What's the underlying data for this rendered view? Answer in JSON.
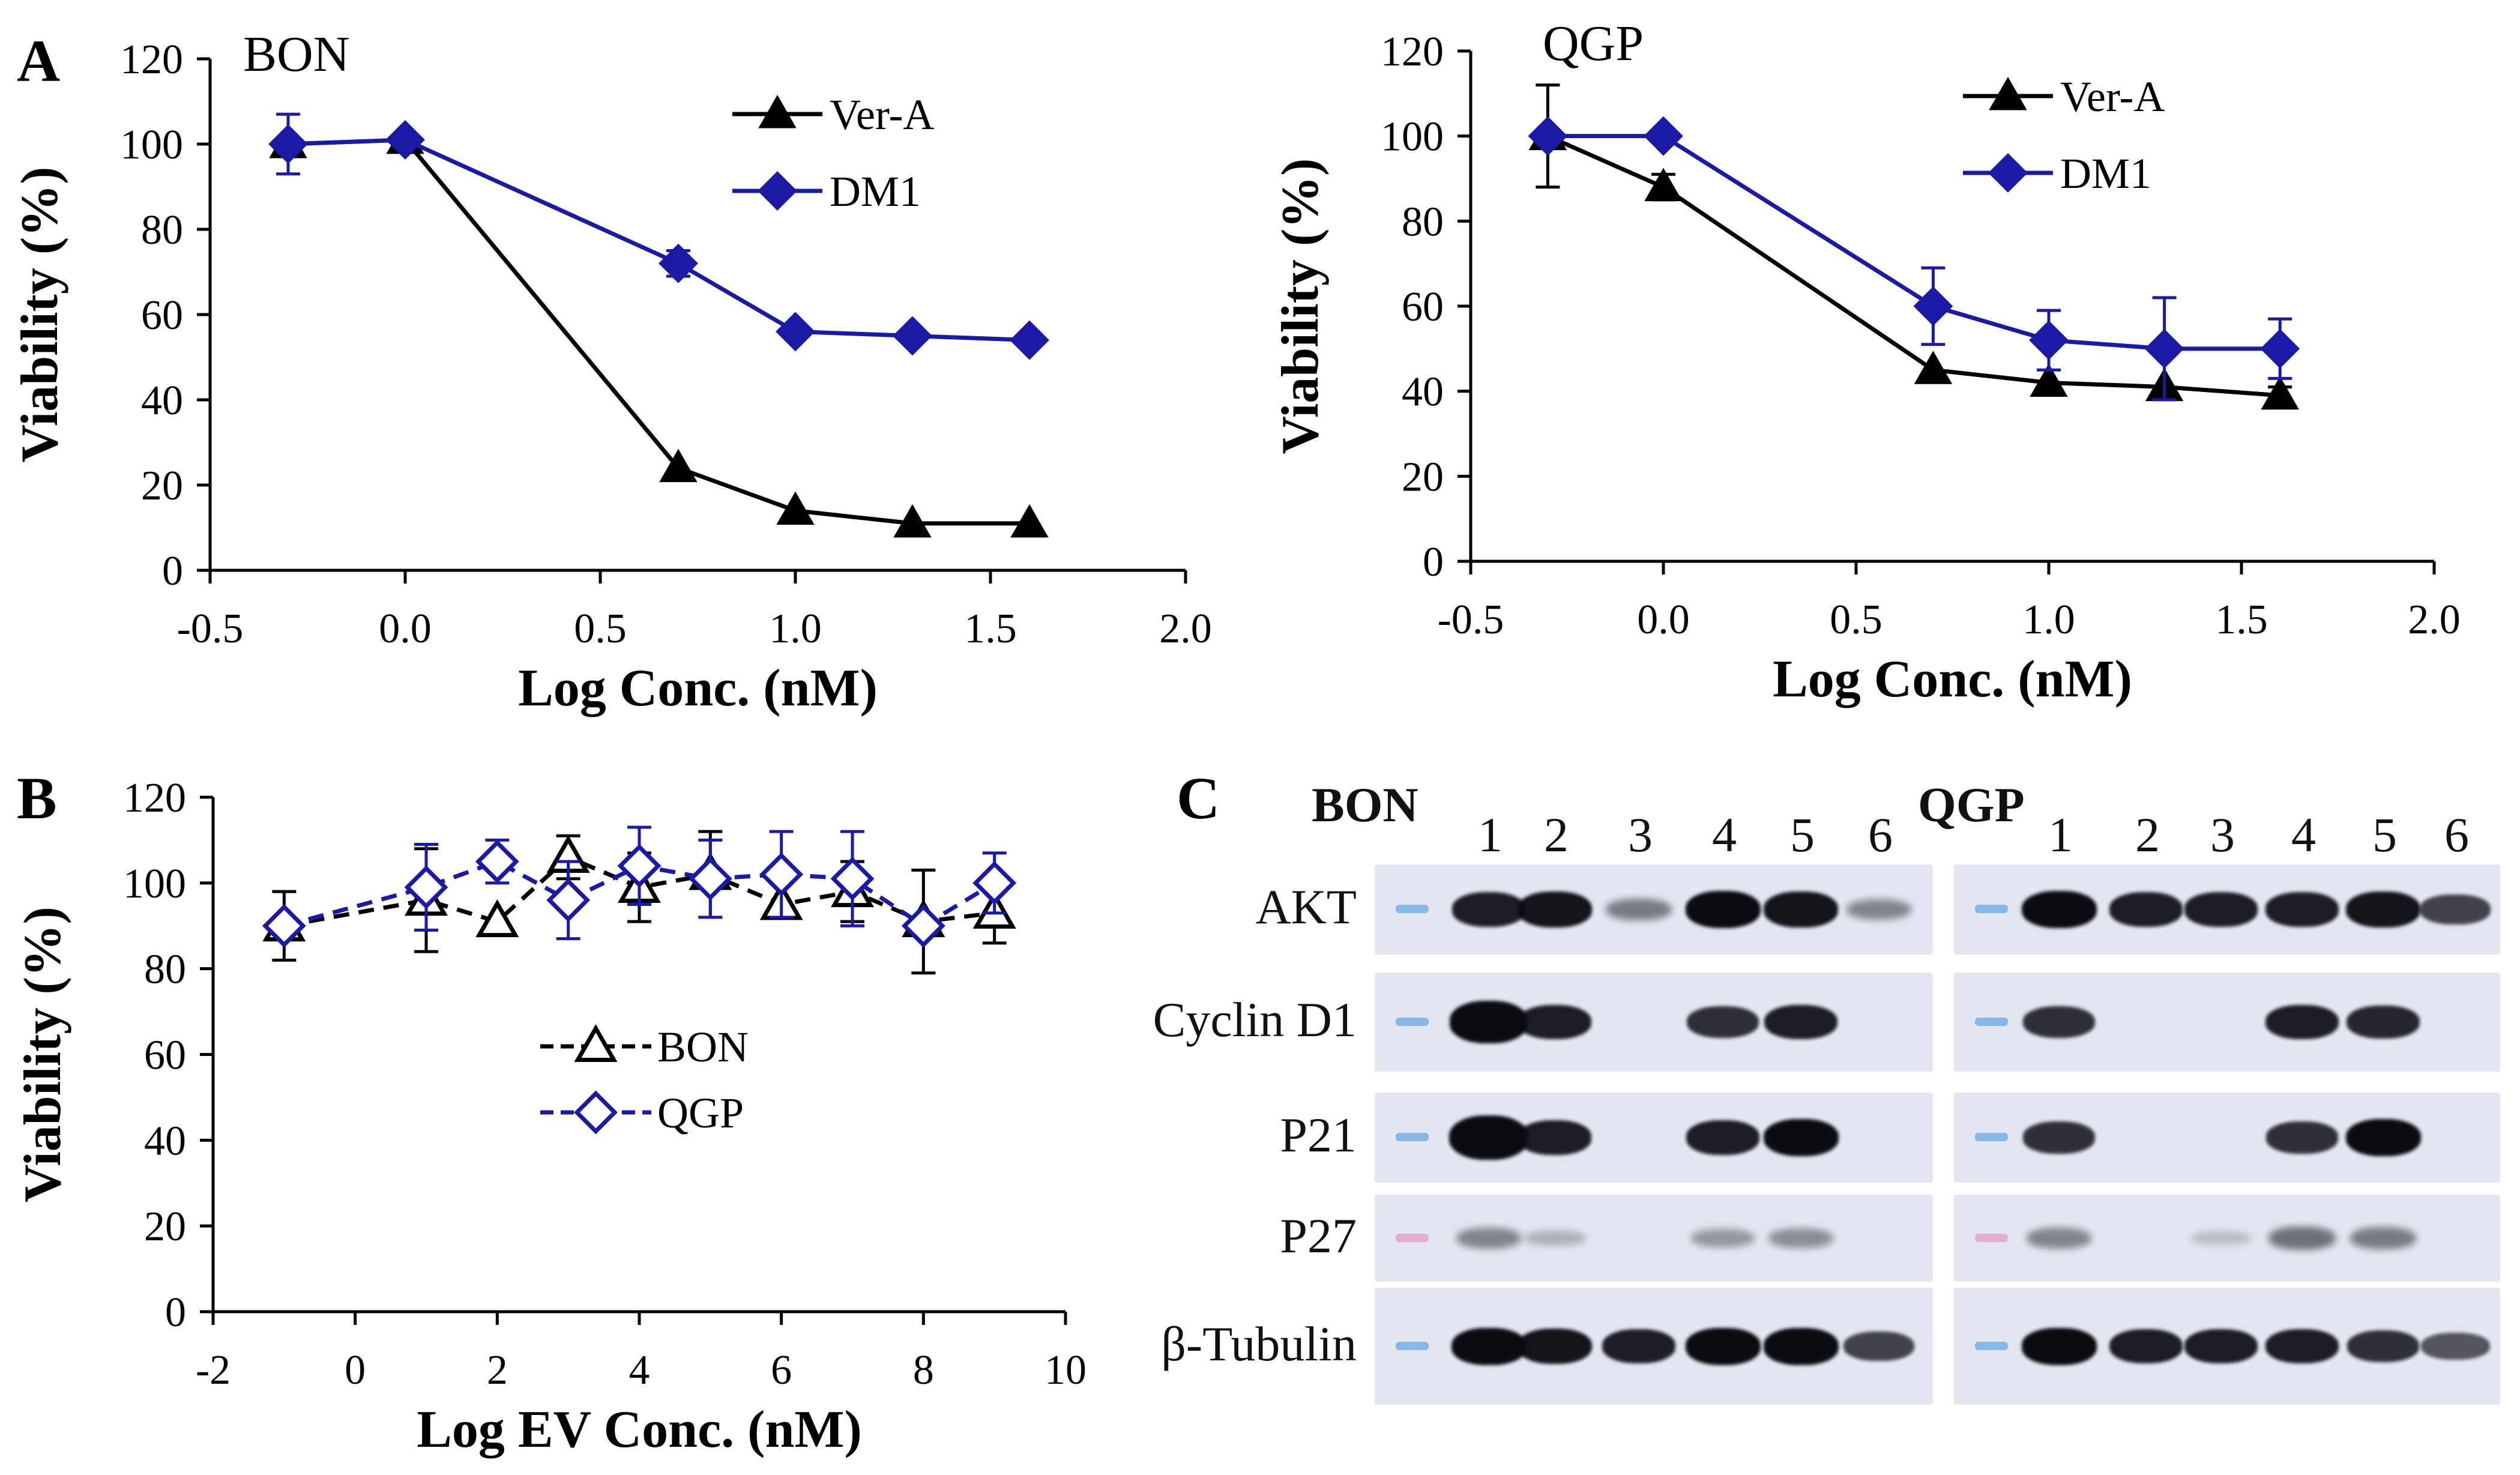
{
  "colors": {
    "black": "#000000",
    "blue": "#1a1aa6",
    "blotBg": "#e3e6f0",
    "band": "#0b0b12",
    "ladderBlue": "#7ab3e6",
    "ladderPink": "#e0a8c8"
  },
  "panels": {
    "a": "A",
    "b": "B",
    "c": "C"
  },
  "chart_data": [
    {
      "id": "A-BON",
      "type": "line",
      "title": "BON",
      "xlabel": "Log Conc. (nM)",
      "ylabel": "Viability (%)",
      "xlim": [
        -0.5,
        2.0
      ],
      "ylim": [
        0,
        120
      ],
      "xticks": [
        -0.5,
        0.0,
        0.5,
        1.0,
        1.5,
        2.0
      ],
      "xtick_labels": [
        "-0.5",
        "0.0",
        "0.5",
        "1.0",
        "1.5",
        "2.0"
      ],
      "yticks": [
        0,
        20,
        40,
        60,
        80,
        100,
        120
      ],
      "ytick_labels": [
        "0",
        "20",
        "40",
        "60",
        "80",
        "100",
        "120"
      ],
      "legend": "top-right",
      "series": [
        {
          "name": "Ver-A",
          "marker": "triangle",
          "color": "#000000",
          "dashed": false,
          "x": [
            -0.3,
            0.0,
            0.7,
            1.0,
            1.3,
            1.6
          ],
          "y": [
            100,
            101,
            24,
            14,
            11,
            11
          ],
          "err": [
            0,
            0,
            0,
            0,
            0,
            0
          ]
        },
        {
          "name": "DM1",
          "marker": "diamond",
          "color": "#1a1aa6",
          "dashed": false,
          "x": [
            -0.3,
            0.0,
            0.7,
            1.0,
            1.3,
            1.6
          ],
          "y": [
            100,
            101,
            72,
            56,
            55,
            54
          ],
          "err": [
            7,
            0,
            3,
            0,
            0,
            0
          ]
        }
      ]
    },
    {
      "id": "A-QGP",
      "type": "line",
      "title": "QGP",
      "xlabel": "Log Conc. (nM)",
      "ylabel": "Viability (%)",
      "xlim": [
        -0.5,
        2.0
      ],
      "ylim": [
        0,
        120
      ],
      "xticks": [
        -0.5,
        0.0,
        0.5,
        1.0,
        1.5,
        2.0
      ],
      "xtick_labels": [
        "-0.5",
        "0.0",
        "0.5",
        "1.0",
        "1.5",
        "2.0"
      ],
      "yticks": [
        0,
        20,
        40,
        60,
        80,
        100,
        120
      ],
      "ytick_labels": [
        "0",
        "20",
        "40",
        "60",
        "80",
        "100",
        "120"
      ],
      "legend": "top-right",
      "series": [
        {
          "name": "Ver-A",
          "marker": "triangle",
          "color": "#000000",
          "dashed": false,
          "x": [
            -0.3,
            0.0,
            0.7,
            1.0,
            1.3,
            1.6
          ],
          "y": [
            100,
            88,
            45,
            42,
            41,
            39
          ],
          "err": [
            12,
            3,
            0,
            0,
            0,
            2
          ]
        },
        {
          "name": "DM1",
          "marker": "diamond",
          "color": "#1a1aa6",
          "dashed": false,
          "x": [
            -0.3,
            0.0,
            0.7,
            1.0,
            1.3,
            1.6
          ],
          "y": [
            100,
            100,
            60,
            52,
            50,
            50
          ],
          "err": [
            0,
            0,
            9,
            7,
            12,
            7
          ]
        }
      ]
    },
    {
      "id": "B",
      "type": "line",
      "title": "",
      "xlabel": "Log EV Conc. (nM)",
      "ylabel": "Viability (%)",
      "xlim": [
        -2,
        10
      ],
      "ylim": [
        0,
        120
      ],
      "xticks": [
        -2,
        0,
        2,
        4,
        6,
        8,
        10
      ],
      "xtick_labels": [
        "-2",
        "0",
        "2",
        "4",
        "6",
        "8",
        "10"
      ],
      "yticks": [
        0,
        20,
        40,
        60,
        80,
        100,
        120
      ],
      "ytick_labels": [
        "0",
        "20",
        "40",
        "60",
        "80",
        "100",
        "120"
      ],
      "legend": "center",
      "series": [
        {
          "name": "BON",
          "marker": "triangle-open",
          "color": "#000000",
          "dashed": true,
          "x": [
            -1,
            1,
            2,
            3,
            4,
            5,
            6,
            7,
            8,
            9
          ],
          "y": [
            90,
            96,
            91,
            106,
            99,
            102,
            95,
            98,
            91,
            93
          ],
          "err": [
            8,
            12,
            0,
            5,
            8,
            10,
            0,
            7,
            12,
            7
          ]
        },
        {
          "name": "QGP",
          "marker": "diamond-open",
          "color": "#1a1aa6",
          "dashed": true,
          "x": [
            -1,
            1,
            2,
            3,
            4,
            5,
            6,
            7,
            8,
            9
          ],
          "y": [
            90,
            99,
            105,
            96,
            104,
            101,
            102,
            101,
            90,
            100
          ],
          "err": [
            0,
            10,
            5,
            9,
            9,
            9,
            10,
            11,
            0,
            7
          ]
        }
      ]
    }
  ],
  "blot": {
    "groups": [
      {
        "title": "BON",
        "lanes": [
          "1",
          "2",
          "3",
          "4",
          "5",
          "6"
        ]
      },
      {
        "title": "QGP",
        "lanes": [
          "1",
          "2",
          "3",
          "4",
          "5",
          "6"
        ]
      }
    ],
    "rows": [
      {
        "label": "AKT",
        "bon": [
          0.9,
          0.95,
          0.4,
          1.0,
          0.95,
          0.35
        ],
        "qgp": [
          1.0,
          0.9,
          0.9,
          0.9,
          0.95,
          0.7
        ]
      },
      {
        "label": "Cyclin D1",
        "bon": [
          1.2,
          0.9,
          0.0,
          0.8,
          0.9,
          0.0
        ],
        "qgp": [
          0.8,
          0.0,
          0.0,
          0.9,
          0.85,
          0.0
        ]
      },
      {
        "label": "P21",
        "bon": [
          1.3,
          0.9,
          0.0,
          0.9,
          1.0,
          0.0
        ],
        "qgp": [
          0.8,
          0.0,
          0.0,
          0.8,
          1.0,
          0.0
        ]
      },
      {
        "label": "P27",
        "bon": [
          0.35,
          0.12,
          0.0,
          0.25,
          0.3,
          0.0
        ],
        "qgp": [
          0.35,
          0.0,
          0.05,
          0.45,
          0.4,
          0.0
        ]
      },
      {
        "label": "β-Tubulin",
        "bon": [
          1.0,
          0.95,
          0.9,
          1.0,
          1.0,
          0.7
        ],
        "qgp": [
          1.0,
          0.9,
          0.9,
          0.9,
          0.8,
          0.6
        ]
      }
    ]
  }
}
